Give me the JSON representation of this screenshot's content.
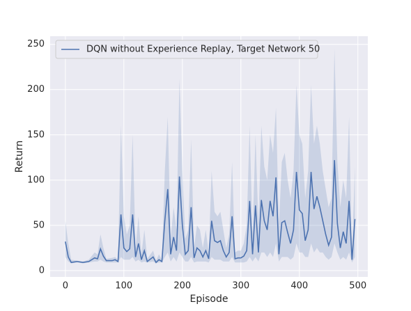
{
  "chart_data": {
    "type": "line",
    "xlabel": "Episode",
    "ylabel": "Return",
    "x": [
      0,
      5,
      10,
      20,
      30,
      40,
      50,
      55,
      60,
      65,
      70,
      80,
      85,
      90,
      95,
      100,
      105,
      110,
      115,
      120,
      125,
      130,
      135,
      140,
      150,
      155,
      160,
      165,
      170,
      175,
      180,
      185,
      190,
      195,
      200,
      205,
      210,
      215,
      220,
      225,
      230,
      235,
      240,
      245,
      250,
      255,
      260,
      265,
      270,
      275,
      280,
      285,
      290,
      295,
      300,
      305,
      310,
      315,
      320,
      325,
      330,
      335,
      340,
      345,
      350,
      355,
      360,
      365,
      370,
      375,
      380,
      385,
      390,
      395,
      400,
      405,
      410,
      415,
      420,
      425,
      430,
      435,
      440,
      445,
      450,
      455,
      460,
      465,
      470,
      475,
      480,
      485,
      490,
      495
    ],
    "series": [
      {
        "name": "DQN without Experience Replay, Target Network 50",
        "color": "#4c72b0",
        "values": [
          32,
          15,
          9,
          10,
          9,
          10,
          14,
          13,
          24,
          16,
          11,
          11,
          12,
          10,
          62,
          25,
          21,
          24,
          62,
          15,
          30,
          12,
          22,
          10,
          15,
          9,
          12,
          10,
          55,
          90,
          18,
          37,
          22,
          104,
          50,
          18,
          22,
          70,
          14,
          25,
          22,
          15,
          22,
          13,
          55,
          33,
          31,
          33,
          22,
          15,
          20,
          60,
          13,
          14,
          14,
          16,
          22,
          77,
          18,
          72,
          20,
          78,
          55,
          45,
          77,
          60,
          103,
          18,
          53,
          55,
          42,
          30,
          45,
          109,
          67,
          63,
          33,
          45,
          109,
          68,
          82,
          70,
          55,
          40,
          28,
          37,
          122,
          52,
          25,
          43,
          30,
          77,
          12,
          57
        ],
        "lower": [
          15,
          10,
          8,
          9,
          8,
          9,
          10,
          10,
          12,
          10,
          9,
          9,
          9,
          9,
          15,
          12,
          12,
          12,
          15,
          10,
          12,
          9,
          10,
          9,
          10,
          8,
          9,
          9,
          15,
          20,
          10,
          15,
          10,
          20,
          15,
          10,
          10,
          15,
          9,
          10,
          10,
          10,
          10,
          9,
          15,
          12,
          12,
          12,
          10,
          10,
          10,
          15,
          9,
          9,
          9,
          9,
          10,
          15,
          10,
          15,
          10,
          20,
          20,
          15,
          20,
          15,
          30,
          10,
          15,
          15,
          15,
          12,
          15,
          30,
          20,
          20,
          15,
          15,
          30,
          20,
          25,
          20,
          20,
          15,
          12,
          15,
          30,
          20,
          12,
          15,
          12,
          20,
          9,
          15
        ],
        "upper": [
          55,
          30,
          12,
          11,
          10,
          12,
          20,
          18,
          40,
          25,
          13,
          14,
          15,
          12,
          160,
          60,
          40,
          50,
          150,
          25,
          60,
          18,
          45,
          13,
          22,
          11,
          18,
          12,
          110,
          170,
          35,
          70,
          45,
          212,
          110,
          35,
          45,
          145,
          25,
          50,
          45,
          25,
          45,
          20,
          110,
          65,
          60,
          65,
          45,
          25,
          40,
          120,
          20,
          22,
          22,
          30,
          50,
          160,
          40,
          150,
          50,
          160,
          115,
          100,
          150,
          130,
          180,
          50,
          120,
          130,
          100,
          80,
          110,
          205,
          150,
          140,
          80,
          110,
          205,
          140,
          160,
          140,
          110,
          90,
          70,
          80,
          245,
          120,
          70,
          100,
          80,
          170,
          20,
          115
        ]
      }
    ],
    "xlim": [
      -26,
      517
    ],
    "ylim": [
      -7,
      259
    ],
    "xticks": [
      0,
      100,
      200,
      300,
      400,
      500
    ],
    "yticks": [
      0,
      50,
      100,
      150,
      200,
      250
    ],
    "grid": true,
    "legend": "upper left"
  }
}
